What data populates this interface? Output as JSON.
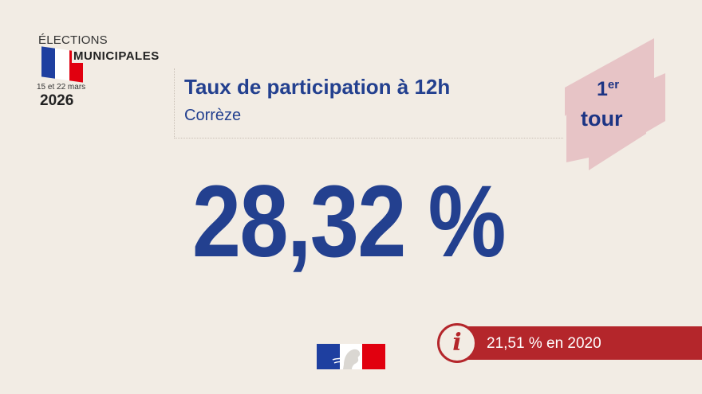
{
  "logo": {
    "line1": "ÉLECTIONS",
    "line2": "MUNICIPALES",
    "dates": "15 et 22 mars",
    "year": "2026"
  },
  "header": {
    "title": "Taux de participation à 12h",
    "subtitle": "Corrèze"
  },
  "tour_badge": {
    "number": "1",
    "suffix": "er",
    "label": "tour"
  },
  "main": {
    "value": "28,32 %"
  },
  "info": {
    "icon": "i",
    "text": "21,51 % en 2020"
  },
  "colors": {
    "background": "#f2ece4",
    "primary_blue": "#23408f",
    "accent_red": "#b4262b",
    "badge_pink": "#e7c4c6"
  },
  "icons": {
    "info": "info-icon",
    "flag": "french-flag-icon",
    "marianne": "marianne-logo-icon"
  }
}
